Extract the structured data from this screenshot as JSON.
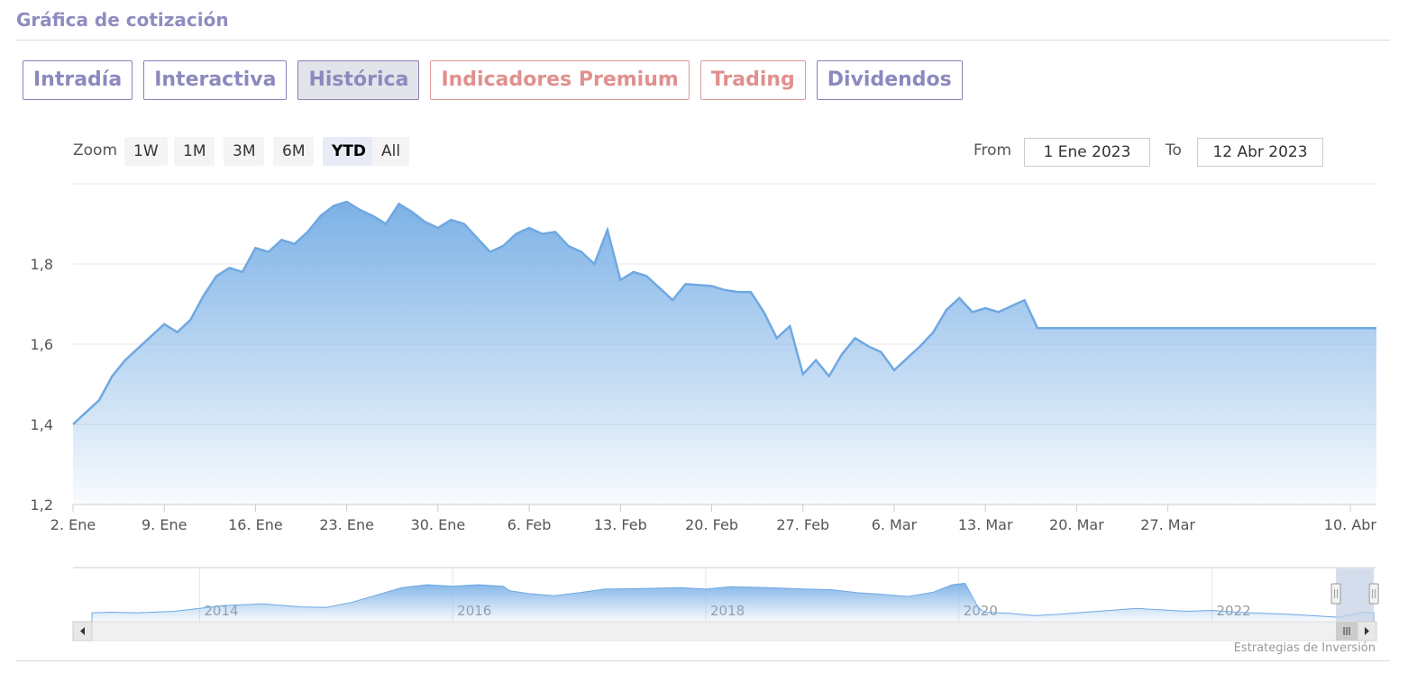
{
  "title": "Gráfica de cotización",
  "tabs": [
    {
      "label": "Intradía",
      "premium": false,
      "active": false
    },
    {
      "label": "Interactiva",
      "premium": false,
      "active": false
    },
    {
      "label": "Histórica",
      "premium": false,
      "active": true
    },
    {
      "label": "Indicadores Premium",
      "premium": true,
      "active": false
    },
    {
      "label": "Trading",
      "premium": true,
      "active": false
    },
    {
      "label": "Dividendos",
      "premium": false,
      "active": false
    }
  ],
  "zoom": {
    "label": "Zoom",
    "buttons": [
      "1W",
      "1M",
      "3M",
      "6M",
      "YTD",
      "All"
    ],
    "selected": "YTD"
  },
  "range": {
    "from_label": "From",
    "from_value": "1 Ene 2023",
    "to_label": "To",
    "to_value": "12 Abr 2023"
  },
  "credits": "Estrategias de Inversión",
  "colors": {
    "series": "#7cb1e6",
    "series_line": "#6fa8e2",
    "tab_border": "#8784b8",
    "premium": "#e0908e"
  },
  "chart_data": {
    "type": "area",
    "title": "",
    "xlabel": "",
    "ylabel": "",
    "ylim": [
      1.2,
      2.0
    ],
    "grid": true,
    "legend": "none",
    "y_ticks": [
      "1,2",
      "1,4",
      "1,6",
      "1,8"
    ],
    "x_ticks": [
      "2. Ene",
      "9. Ene",
      "16. Ene",
      "23. Ene",
      "30. Ene",
      "6. Feb",
      "13. Feb",
      "20. Feb",
      "27. Feb",
      "6. Mar",
      "13. Mar",
      "20. Mar",
      "27. Mar",
      "10. Abr"
    ],
    "x_range": [
      "2023-01-02",
      "2023-04-12"
    ],
    "series": [
      {
        "x": [
          "2023-01-02",
          "2023-01-03",
          "2023-01-04",
          "2023-01-05",
          "2023-01-06",
          "2023-01-07",
          "2023-01-09",
          "2023-01-10",
          "2023-01-11",
          "2023-01-12",
          "2023-01-13",
          "2023-01-14",
          "2023-01-15",
          "2023-01-16",
          "2023-01-17",
          "2023-01-18",
          "2023-01-19",
          "2023-01-20",
          "2023-01-21",
          "2023-01-22",
          "2023-01-23",
          "2023-01-24",
          "2023-01-25",
          "2023-01-26",
          "2023-01-27",
          "2023-01-28",
          "2023-01-29",
          "2023-01-30",
          "2023-01-31",
          "2023-02-01",
          "2023-02-03",
          "2023-02-04",
          "2023-02-05",
          "2023-02-06",
          "2023-02-07",
          "2023-02-08",
          "2023-02-09",
          "2023-02-10",
          "2023-02-11",
          "2023-02-12",
          "2023-02-13",
          "2023-02-14",
          "2023-02-15",
          "2023-02-16",
          "2023-02-17",
          "2023-02-18",
          "2023-02-20",
          "2023-02-21",
          "2023-02-22",
          "2023-02-23",
          "2023-02-24",
          "2023-02-25",
          "2023-02-26",
          "2023-02-27",
          "2023-02-28",
          "2023-03-01",
          "2023-03-02",
          "2023-03-03",
          "2023-03-04",
          "2023-03-05",
          "2023-03-06",
          "2023-03-07",
          "2023-03-08",
          "2023-03-09",
          "2023-03-10",
          "2023-03-11",
          "2023-03-12",
          "2023-03-13",
          "2023-03-14",
          "2023-03-15",
          "2023-03-16",
          "2023-03-17",
          "2023-03-18",
          "2023-03-19",
          "2023-03-20",
          "2023-03-21",
          "2023-03-22",
          "2023-03-23",
          "2023-03-24",
          "2023-03-25",
          "2023-03-26",
          "2023-03-27",
          "2023-03-28",
          "2023-03-30",
          "2023-03-31",
          "2023-04-01",
          "2023-04-02",
          "2023-04-03",
          "2023-04-04",
          "2023-04-05",
          "2023-04-06",
          "2023-04-07",
          "2023-04-09",
          "2023-04-10",
          "2023-04-11",
          "2023-04-12"
        ],
        "y": [
          1.4,
          1.43,
          1.46,
          1.52,
          1.56,
          1.59,
          1.65,
          1.63,
          1.66,
          1.72,
          1.77,
          1.79,
          1.78,
          1.84,
          1.83,
          1.86,
          1.85,
          1.88,
          1.92,
          1.945,
          1.955,
          1.935,
          1.92,
          1.9,
          1.95,
          1.93,
          1.905,
          1.89,
          1.91,
          1.9,
          1.83,
          1.845,
          1.875,
          1.89,
          1.875,
          1.88,
          1.845,
          1.83,
          1.8,
          1.885,
          1.76,
          1.78,
          1.77,
          1.74,
          1.71,
          1.75,
          1.745,
          1.735,
          1.73,
          1.73,
          1.68,
          1.615,
          1.645,
          1.525,
          1.56,
          1.52,
          1.575,
          1.615,
          1.595,
          1.58,
          1.535,
          1.565,
          1.595,
          1.63,
          1.685,
          1.715,
          1.68,
          1.69,
          1.68,
          1.695,
          1.71,
          1.64,
          1.64,
          1.64,
          1.64,
          1.64,
          1.64,
          1.64,
          1.64,
          1.64,
          1.64,
          1.64,
          1.64,
          1.64,
          1.64,
          1.64,
          1.64,
          1.64,
          1.64,
          1.64,
          1.64,
          1.64,
          1.64,
          1.64,
          1.64,
          1.64
        ]
      }
    ]
  },
  "navigator": {
    "labels": [
      "2014",
      "2016",
      "2018",
      "2020",
      "2022"
    ],
    "x_range": [
      2013,
      2023.3
    ],
    "ylim": [
      0.8,
      2.6
    ],
    "x": [
      2013.15,
      2013.3,
      2013.5,
      2013.8,
      2014.0,
      2014.2,
      2014.5,
      2014.8,
      2015.0,
      2015.2,
      2015.4,
      2015.6,
      2015.8,
      2016.0,
      2016.2,
      2016.4,
      2016.45,
      2016.6,
      2016.8,
      2017.0,
      2017.2,
      2017.5,
      2017.8,
      2018.0,
      2018.2,
      2018.5,
      2018.8,
      2019.0,
      2019.2,
      2019.4,
      2019.6,
      2019.8,
      2019.95,
      2020.05,
      2020.15,
      2020.2,
      2020.4,
      2020.6,
      2020.8,
      2021.0,
      2021.2,
      2021.4,
      2021.6,
      2021.8,
      2022.0,
      2022.2,
      2022.4,
      2022.6,
      2022.8,
      2023.0,
      2023.2,
      2023.28
    ],
    "y": [
      1.1,
      1.12,
      1.1,
      1.15,
      1.25,
      1.35,
      1.4,
      1.3,
      1.28,
      1.45,
      1.7,
      1.95,
      2.05,
      2.0,
      2.05,
      2.0,
      1.85,
      1.75,
      1.68,
      1.78,
      1.9,
      1.92,
      1.95,
      1.9,
      1.98,
      1.95,
      1.9,
      1.88,
      1.78,
      1.72,
      1.65,
      1.8,
      2.05,
      2.1,
      1.3,
      1.12,
      1.08,
      1.0,
      1.05,
      1.12,
      1.18,
      1.25,
      1.2,
      1.15,
      1.18,
      1.12,
      1.08,
      1.05,
      1.0,
      0.95,
      1.12,
      1.1
    ],
    "window": [
      2022.98,
      2023.28
    ]
  }
}
